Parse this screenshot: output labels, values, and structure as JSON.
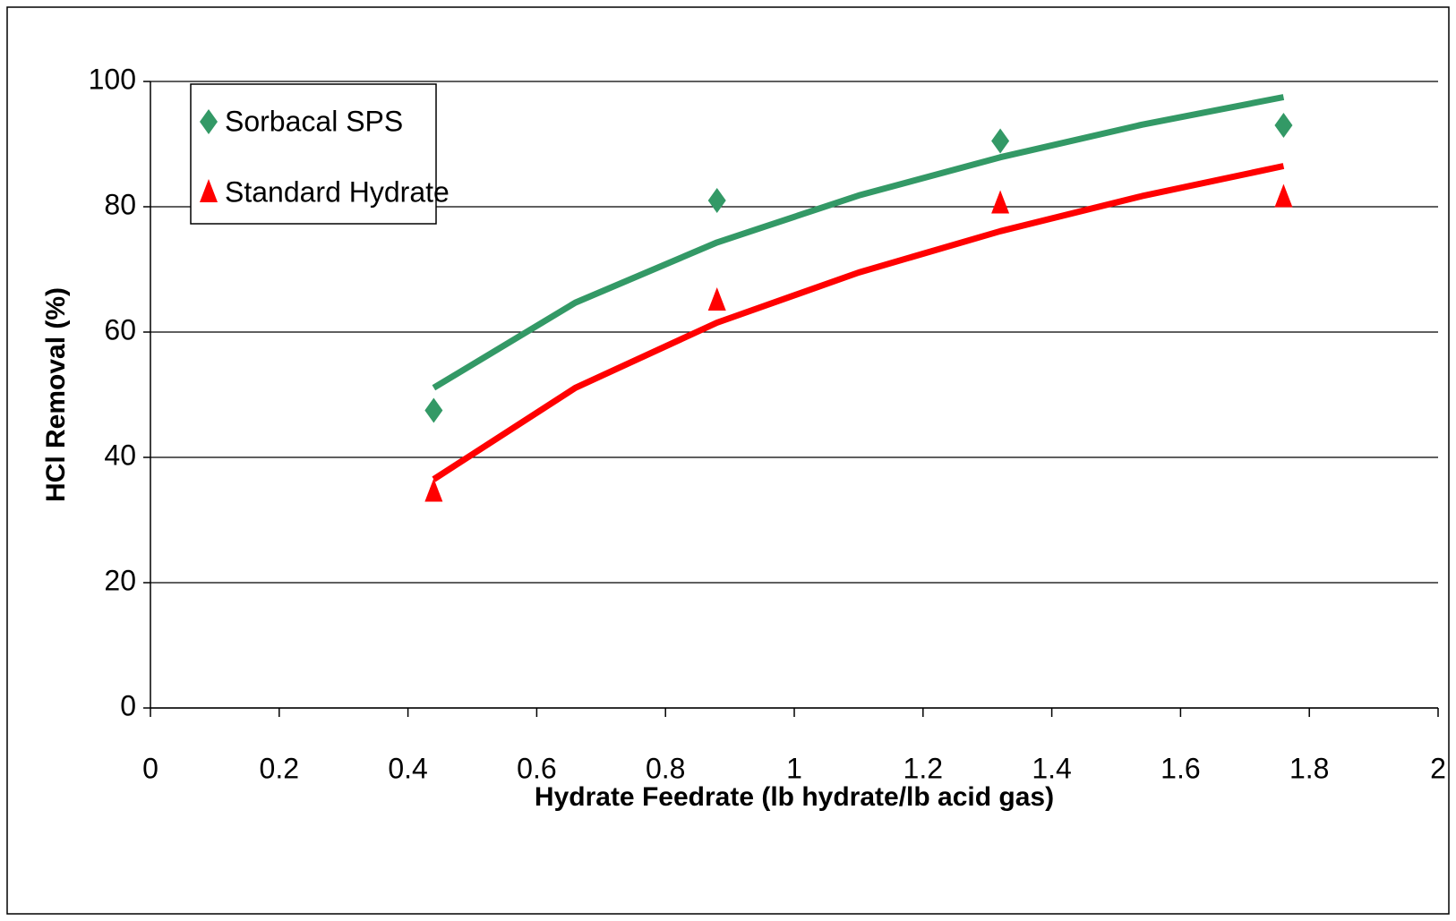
{
  "chart_data": {
    "type": "scatter",
    "x_label": "Hydrate Feedrate (lb hydrate/lb acid gas)",
    "y_label": "HCl Removal (%)",
    "xlim": [
      0,
      2
    ],
    "xticks": [
      0,
      0.2,
      0.4,
      0.6,
      0.8,
      1,
      1.2,
      1.4,
      1.6,
      1.8,
      2
    ],
    "ylim": [
      0,
      100
    ],
    "yticks": [
      0,
      20,
      40,
      60,
      80,
      100
    ],
    "grid": true,
    "legend": "upper left",
    "series": [
      {
        "name": "Sorbacal SPS",
        "color": "#339966",
        "marker": "diamond",
        "x": [
          0.44,
          0.88,
          1.32,
          1.76
        ],
        "values": [
          47.5,
          81,
          90.5,
          93
        ],
        "trend_x": [
          0.44,
          0.66,
          0.88,
          1.1,
          1.32,
          1.54,
          1.76
        ],
        "trend_values": [
          51.1,
          64.7,
          74.3,
          81.8,
          87.9,
          93.1,
          97.5
        ]
      },
      {
        "name": "Standard Hydrate",
        "color": "#ff0000",
        "marker": "triangle",
        "x": [
          0.44,
          0.88,
          1.32,
          1.76
        ],
        "values": [
          34.5,
          65,
          80.5,
          81.5
        ],
        "trend_x": [
          0.44,
          0.66,
          0.88,
          1.1,
          1.32,
          1.54,
          1.76
        ],
        "trend_values": [
          36.5,
          51.1,
          61.5,
          69.5,
          76.1,
          81.7,
          86.5
        ]
      }
    ]
  }
}
